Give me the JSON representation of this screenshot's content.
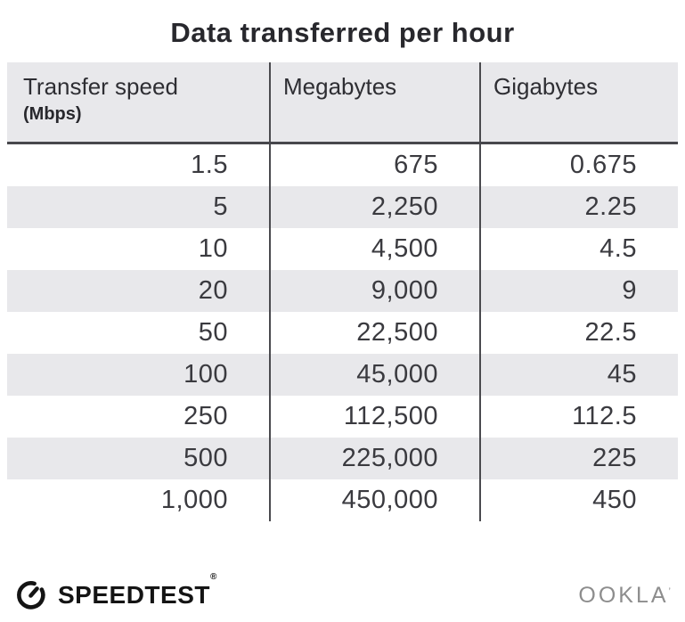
{
  "title": "Data transferred per hour",
  "table": {
    "columns": [
      {
        "label": "Transfer speed",
        "sublabel": "(Mbps)"
      },
      {
        "label": "Megabytes"
      },
      {
        "label": "Gigabytes"
      }
    ],
    "rows": [
      [
        "1.5",
        "675",
        "0.675"
      ],
      [
        "5",
        "2,250",
        "2.25"
      ],
      [
        "10",
        "4,500",
        "4.5"
      ],
      [
        "20",
        "9,000",
        "9"
      ],
      [
        "50",
        "22,500",
        "22.5"
      ],
      [
        "100",
        "45,000",
        "45"
      ],
      [
        "250",
        "112,500",
        "112.5"
      ],
      [
        "500",
        "225,000",
        "225"
      ],
      [
        "1,000",
        "450,000",
        "450"
      ]
    ]
  },
  "chart_data": {
    "type": "table",
    "title": "Data transferred per hour",
    "columns": [
      "Transfer speed (Mbps)",
      "Megabytes",
      "Gigabytes"
    ],
    "rows": [
      [
        1.5,
        675,
        0.675
      ],
      [
        5,
        2250,
        2.25
      ],
      [
        10,
        4500,
        4.5
      ],
      [
        20,
        9000,
        9
      ],
      [
        50,
        22500,
        22.5
      ],
      [
        100,
        45000,
        45
      ],
      [
        250,
        112500,
        112.5
      ],
      [
        500,
        225000,
        225
      ],
      [
        1000,
        450000,
        450
      ]
    ]
  },
  "footer": {
    "brand": "SPEEDTEST",
    "brand_mark": "®",
    "company": "OOKLA",
    "company_mark": "’"
  },
  "colors": {
    "text_dark": "#28282d",
    "cell_text": "#3a3a3f",
    "row_alt_bg": "#e8e8eb",
    "divider": "#4a4a4e",
    "header_border": "#47474c",
    "ookla_gray": "#8d8d8d"
  }
}
